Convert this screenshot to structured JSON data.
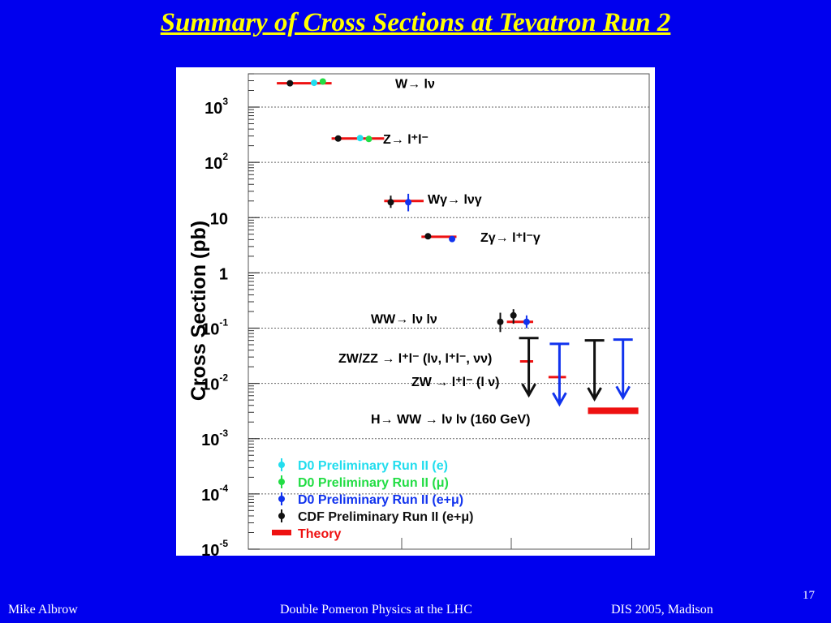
{
  "slide": {
    "title": "Summary of Cross Sections at Tevatron Run 2",
    "number": "17",
    "footer": {
      "left": "Mike Albrow",
      "center": "Double Pomeron Physics  at the LHC",
      "right": "DIS 2005, Madison"
    }
  },
  "chart_data": {
    "type": "scatter",
    "ylabel": "Cross Section  (pb)",
    "yscale": "log",
    "ylim": [
      1e-05,
      4000
    ],
    "yticks": [
      {
        "value": 1e-05,
        "base": "10",
        "exp": "-5"
      },
      {
        "value": 0.0001,
        "base": "10",
        "exp": "-4"
      },
      {
        "value": 0.001,
        "base": "10",
        "exp": "-3"
      },
      {
        "value": 0.01,
        "base": "10",
        "exp": "-2"
      },
      {
        "value": 0.1,
        "base": "10",
        "exp": "-1"
      },
      {
        "value": 1,
        "base": "1",
        "exp": ""
      },
      {
        "value": 10,
        "base": "10",
        "exp": ""
      },
      {
        "value": 100,
        "base": "10",
        "exp": "2"
      },
      {
        "value": 1000,
        "base": "10",
        "exp": "3"
      }
    ],
    "grid": true,
    "colors": {
      "theory": "#ee1111",
      "d0_e": "#22ddee",
      "d0_mu": "#22dd44",
      "d0_emu": "#1133ee",
      "cdf": "#111111"
    },
    "process_labels": [
      {
        "text": "W→ lν",
        "y": 2700
      },
      {
        "text": "Z→ l⁺l⁻",
        "y": 270
      },
      {
        "text": "Wγ→ lνγ",
        "y": 22
      },
      {
        "text": "Zγ→ l⁺l⁻γ",
        "y": 4.5
      },
      {
        "text": "WW→ lν lν",
        "y": 0.15
      },
      {
        "text": "ZW/ZZ → l⁺l⁻ (lν, l⁺l⁻, νν)",
        "y": 0.029
      },
      {
        "text": "ZW → l⁺l⁻ (l ν)",
        "y": 0.011
      },
      {
        "text": "H→ WW → lν lν (160 GeV)",
        "y": 0.0023
      }
    ],
    "theory": [
      {
        "x": [
          0.13,
          0.38
        ],
        "y": 2700
      },
      {
        "x": [
          0.38,
          0.62
        ],
        "y": 270
      },
      {
        "x": [
          0.62,
          0.8
        ],
        "y": 20
      },
      {
        "x": [
          0.79,
          0.95
        ],
        "y": 4.5
      },
      {
        "x": [
          1.18,
          1.3
        ],
        "y": 0.13
      },
      {
        "x": [
          1.24,
          1.3
        ],
        "y": 0.025
      },
      {
        "x": [
          1.37,
          1.45
        ],
        "y": 0.013
      },
      {
        "x": [
          1.55,
          1.78
        ],
        "y": 0.0032,
        "thick": true
      }
    ],
    "measurements": [
      {
        "group": "cdf",
        "x": 0.19,
        "y": 2700
      },
      {
        "group": "d0_e",
        "x": 0.3,
        "y": 2750
      },
      {
        "group": "d0_mu",
        "x": 0.34,
        "y": 2900
      },
      {
        "group": "cdf",
        "x": 0.41,
        "y": 270
      },
      {
        "group": "d0_e",
        "x": 0.51,
        "y": 275
      },
      {
        "group": "d0_mu",
        "x": 0.55,
        "y": 265
      },
      {
        "group": "cdf",
        "x": 0.65,
        "y": 19,
        "lo": 15,
        "hi": 25
      },
      {
        "group": "d0_emu",
        "x": 0.73,
        "y": 19,
        "lo": 13,
        "hi": 27
      },
      {
        "group": "cdf",
        "x": 0.82,
        "y": 4.6
      },
      {
        "group": "d0_emu",
        "x": 0.93,
        "y": 4.1
      },
      {
        "group": "cdf",
        "x": 1.15,
        "y": 0.13,
        "lo": 0.085,
        "hi": 0.19
      },
      {
        "group": "cdf",
        "x": 1.21,
        "y": 0.17,
        "lo": 0.12,
        "hi": 0.22
      },
      {
        "group": "d0_emu",
        "x": 1.27,
        "y": 0.13,
        "lo": 0.1,
        "hi": 0.17
      }
    ],
    "limits": [
      {
        "group": "cdf",
        "x": 1.28,
        "top": 0.066,
        "bottom": 0.0061
      },
      {
        "group": "d0_emu",
        "x": 1.42,
        "top": 0.052,
        "bottom": 0.0042
      },
      {
        "group": "cdf",
        "x": 1.58,
        "top": 0.06,
        "bottom": 0.0052
      },
      {
        "group": "d0_emu",
        "x": 1.71,
        "top": 0.062,
        "bottom": 0.0055
      }
    ],
    "legend": {
      "placement": "bottom-left",
      "entries": [
        {
          "label": "D0 Preliminary Run II (e)",
          "group": "d0_e",
          "marker": "point"
        },
        {
          "label": "D0 Preliminary Run II (μ)",
          "group": "d0_mu",
          "marker": "point"
        },
        {
          "label": "D0 Preliminary Run II (e+μ)",
          "group": "d0_emu",
          "marker": "point"
        },
        {
          "label": "CDF Preliminary Run II (e+μ)",
          "group": "cdf",
          "marker": "point"
        },
        {
          "label": "Theory",
          "group": "theory",
          "marker": "bar"
        }
      ]
    }
  }
}
